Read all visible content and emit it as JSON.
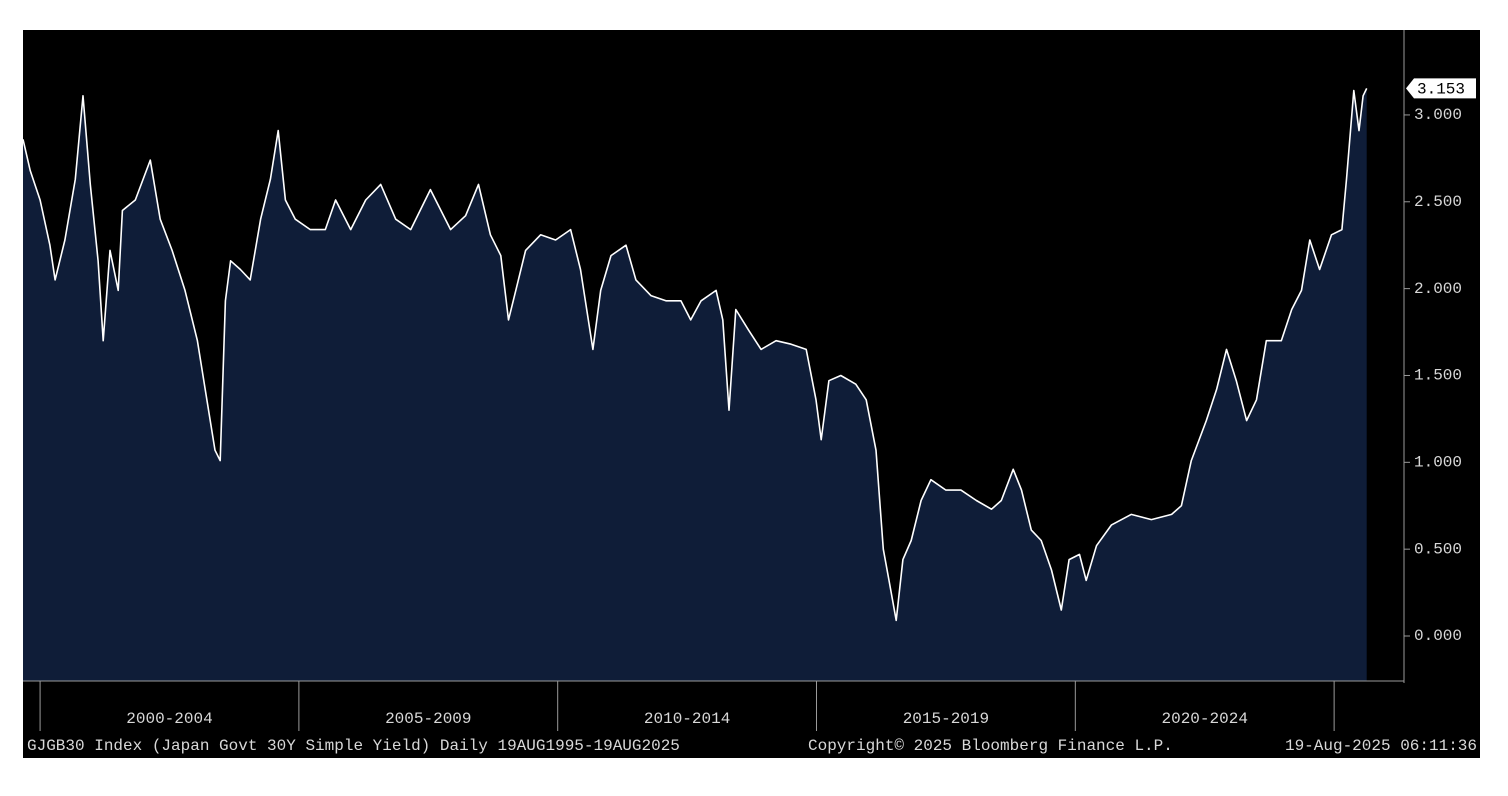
{
  "chart_data": {
    "type": "area",
    "series_label": "GJGB30 Index (Japan Govt 30Y Simple Yield)  Daily 19AUG1995-19AUG2025",
    "copyright": "Copyright© 2025 Bloomberg Finance L.P.",
    "timestamp": "19-Aug-2025 06:11:36",
    "line_color": "#ffffff",
    "fill_color": "#0f1d38",
    "x": [
      1999.67,
      1999.81,
      2000.0,
      2000.19,
      2000.29,
      2000.48,
      2000.68,
      2000.83,
      2000.97,
      2001.12,
      2001.22,
      2001.35,
      2001.51,
      2001.59,
      2001.84,
      2002.13,
      2002.32,
      2002.55,
      2002.8,
      2003.04,
      2003.19,
      2003.38,
      2003.48,
      2003.58,
      2003.68,
      2003.87,
      2004.06,
      2004.26,
      2004.45,
      2004.6,
      2004.74,
      2004.93,
      2005.22,
      2005.51,
      2005.71,
      2006.0,
      2006.29,
      2006.58,
      2006.87,
      2007.16,
      2007.54,
      2007.93,
      2008.22,
      2008.47,
      2008.7,
      2008.9,
      2009.05,
      2009.19,
      2009.38,
      2009.67,
      2009.96,
      2010.25,
      2010.44,
      2010.68,
      2010.83,
      2011.03,
      2011.32,
      2011.51,
      2011.8,
      2012.09,
      2012.38,
      2012.57,
      2012.77,
      2013.06,
      2013.19,
      2013.31,
      2013.44,
      2013.69,
      2013.93,
      2014.22,
      2014.51,
      2014.8,
      2014.99,
      2015.09,
      2015.24,
      2015.47,
      2015.76,
      2015.96,
      2016.15,
      2016.29,
      2016.4,
      2016.54,
      2016.67,
      2016.83,
      2017.02,
      2017.21,
      2017.5,
      2017.79,
      2018.09,
      2018.38,
      2018.57,
      2018.8,
      2018.96,
      2019.15,
      2019.34,
      2019.54,
      2019.73,
      2019.88,
      2020.08,
      2020.21,
      2020.41,
      2020.7,
      2021.08,
      2021.47,
      2021.86,
      2022.05,
      2022.24,
      2022.53,
      2022.73,
      2022.92,
      2023.11,
      2023.31,
      2023.5,
      2023.69,
      2023.98,
      2024.18,
      2024.37,
      2024.53,
      2024.72,
      2024.95,
      2025.15,
      2025.24,
      2025.38,
      2025.48,
      2025.56,
      2025.63
    ],
    "values": [
      2.86,
      2.68,
      2.51,
      2.25,
      2.05,
      2.28,
      2.63,
      3.11,
      2.6,
      2.16,
      1.7,
      2.22,
      1.99,
      2.45,
      2.51,
      2.74,
      2.4,
      2.22,
      1.99,
      1.7,
      1.42,
      1.07,
      1.01,
      1.93,
      2.16,
      2.11,
      2.05,
      2.4,
      2.63,
      2.91,
      2.51,
      2.4,
      2.34,
      2.34,
      2.51,
      2.34,
      2.51,
      2.6,
      2.4,
      2.34,
      2.57,
      2.34,
      2.42,
      2.6,
      2.31,
      2.19,
      1.82,
      1.99,
      2.22,
      2.31,
      2.28,
      2.34,
      2.11,
      1.65,
      1.99,
      2.19,
      2.25,
      2.05,
      1.96,
      1.93,
      1.93,
      1.82,
      1.93,
      1.99,
      1.82,
      1.3,
      1.88,
      1.76,
      1.65,
      1.7,
      1.68,
      1.65,
      1.36,
      1.13,
      1.47,
      1.5,
      1.45,
      1.36,
      1.07,
      0.5,
      0.32,
      0.09,
      0.44,
      0.55,
      0.78,
      0.9,
      0.84,
      0.84,
      0.78,
      0.73,
      0.78,
      0.96,
      0.84,
      0.61,
      0.55,
      0.38,
      0.15,
      0.44,
      0.47,
      0.32,
      0.52,
      0.64,
      0.7,
      0.67,
      0.7,
      0.75,
      1.01,
      1.24,
      1.42,
      1.65,
      1.47,
      1.24,
      1.36,
      1.7,
      1.7,
      1.88,
      1.99,
      2.28,
      2.11,
      2.31,
      2.34,
      2.63,
      3.14,
      2.91,
      3.11,
      3.153
    ],
    "last_value": 3.153,
    "xlim": [
      1999.67,
      2026.35
    ],
    "xticks": [
      2000,
      2005,
      2010,
      2015,
      2020,
      2025
    ],
    "period_labels": [
      {
        "value": 2002.5,
        "label": "2000-2004"
      },
      {
        "value": 2007.5,
        "label": "2005-2009"
      },
      {
        "value": 2012.5,
        "label": "2010-2014"
      },
      {
        "value": 2017.5,
        "label": "2015-2019"
      },
      {
        "value": 2022.5,
        "label": "2020-2024"
      }
    ],
    "ylim": [
      -0.259,
      3.489
    ],
    "yticks": [
      {
        "value": 0,
        "label": "0.000"
      },
      {
        "value": 0.5,
        "label": "0.500"
      },
      {
        "value": 1,
        "label": "1.000"
      },
      {
        "value": 1.5,
        "label": "1.500"
      },
      {
        "value": 2,
        "label": "2.000"
      },
      {
        "value": 2.5,
        "label": "2.500"
      },
      {
        "value": 3,
        "label": "3.000"
      }
    ]
  }
}
